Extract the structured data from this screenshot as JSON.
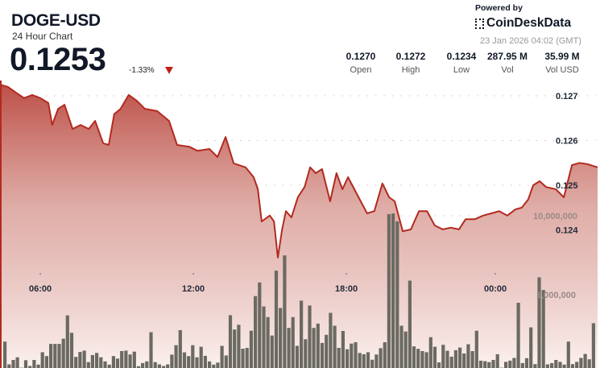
{
  "header": {
    "symbol": "DOGE-USD",
    "subtitle": "24 Hour Chart",
    "price": "0.1253",
    "change": "-1.33%",
    "change_direction": "down",
    "powered_by": "Powered by",
    "brand": "CoinDeskData",
    "timestamp": "23 Jan 2026 04:02 (GMT)",
    "stats": [
      {
        "value": "0.1270",
        "label": "Open"
      },
      {
        "value": "0.1272",
        "label": "High"
      },
      {
        "value": "0.1234",
        "label": "Low"
      },
      {
        "value": "287.95 M",
        "label": "Vol"
      },
      {
        "value": "35.99 M",
        "label": "Vol USD"
      }
    ]
  },
  "colors": {
    "line": "#b22a20",
    "fill_top": "#b8433a",
    "volume_bar": "#6b6a62",
    "down": "#c0201a"
  },
  "chart_data": [
    {
      "type": "area",
      "ylabel_ticks": [
        "0.127",
        "0.126",
        "0.125",
        "0.124"
      ],
      "yticks": [
        0.127,
        0.126,
        0.125,
        0.124
      ],
      "xticks": [
        "06:00",
        "12:00",
        "18:00",
        "00:00"
      ],
      "grid": "dotted-horizontal",
      "series": [
        {
          "points": [
            [
              "04:25",
              0.12725
            ],
            [
              "04:44",
              0.1272
            ],
            [
              "05:03",
              0.12707
            ],
            [
              "05:22",
              0.12695
            ],
            [
              "05:41",
              0.12702
            ],
            [
              "06:00",
              0.12695
            ],
            [
              "06:19",
              0.12684
            ],
            [
              "06:28",
              0.12635
            ],
            [
              "06:42",
              0.12671
            ],
            [
              "06:57",
              0.1268
            ],
            [
              "07:16",
              0.12626
            ],
            [
              "07:35",
              0.12635
            ],
            [
              "07:54",
              0.12626
            ],
            [
              "08:09",
              0.12644
            ],
            [
              "08:28",
              0.12594
            ],
            [
              "08:41",
              0.1259
            ],
            [
              "08:54",
              0.12659
            ],
            [
              "09:09",
              0.12671
            ],
            [
              "09:28",
              0.12702
            ],
            [
              "09:47",
              0.12689
            ],
            [
              "10:06",
              0.12671
            ],
            [
              "10:35",
              0.12666
            ],
            [
              "11:03",
              0.12644
            ],
            [
              "11:22",
              0.1259
            ],
            [
              "11:51",
              0.12586
            ],
            [
              "12:10",
              0.12577
            ],
            [
              "12:38",
              0.12581
            ],
            [
              "12:57",
              0.12563
            ],
            [
              "13:16",
              0.12608
            ],
            [
              "13:35",
              0.12549
            ],
            [
              "14:03",
              0.1254
            ],
            [
              "14:22",
              0.12518
            ],
            [
              "14:32",
              0.12491
            ],
            [
              "14:41",
              0.12419
            ],
            [
              "15:00",
              0.12432
            ],
            [
              "15:10",
              0.12419
            ],
            [
              "15:19",
              0.12338
            ],
            [
              "15:29",
              0.12401
            ],
            [
              "15:38",
              0.12442
            ],
            [
              "15:51",
              0.12428
            ],
            [
              "16:06",
              0.12473
            ],
            [
              "16:22",
              0.12496
            ],
            [
              "16:35",
              0.1254
            ],
            [
              "16:48",
              0.12527
            ],
            [
              "17:03",
              0.12536
            ],
            [
              "17:22",
              0.12464
            ],
            [
              "17:37",
              0.12527
            ],
            [
              "17:51",
              0.12491
            ],
            [
              "18:04",
              0.12518
            ],
            [
              "18:19",
              0.12491
            ],
            [
              "18:34",
              0.12464
            ],
            [
              "18:49",
              0.12437
            ],
            [
              "19:06",
              0.12442
            ],
            [
              "19:25",
              0.12504
            ],
            [
              "19:41",
              0.12473
            ],
            [
              "19:54",
              0.12464
            ],
            [
              "20:13",
              0.12397
            ],
            [
              "20:32",
              0.12401
            ],
            [
              "20:51",
              0.12442
            ],
            [
              "21:10",
              0.12442
            ],
            [
              "21:28",
              0.1241
            ],
            [
              "21:47",
              0.12401
            ],
            [
              "22:06",
              0.12405
            ],
            [
              "22:25",
              0.12401
            ],
            [
              "22:41",
              0.12424
            ],
            [
              "23:03",
              0.12424
            ],
            [
              "23:22",
              0.12432
            ],
            [
              "23:41",
              0.12437
            ],
            [
              "00:00",
              0.12442
            ],
            [
              "00:19",
              0.12432
            ],
            [
              "00:38",
              0.12446
            ],
            [
              "00:53",
              0.1245
            ],
            [
              "01:08",
              0.12468
            ],
            [
              "01:20",
              0.125
            ],
            [
              "01:35",
              0.12509
            ],
            [
              "01:50",
              0.12496
            ],
            [
              "02:13",
              0.12491
            ],
            [
              "02:32",
              0.12473
            ],
            [
              "02:51",
              0.12545
            ],
            [
              "03:09",
              0.1255
            ],
            [
              "03:28",
              0.12547
            ],
            [
              "03:47",
              0.1254
            ]
          ]
        }
      ]
    },
    {
      "type": "bar",
      "scale": "log",
      "ytick_labels": [
        "10,000,000",
        "1,000,000"
      ],
      "yticks": [
        10000000,
        1000000
      ],
      "values": [
        255000,
        131000,
        149000,
        161000,
        119000,
        148000,
        125000,
        149000,
        130000,
        187000,
        167000,
        238000,
        238000,
        238000,
        277000,
        547000,
        329000,
        163000,
        188000,
        196000,
        140000,
        172000,
        183000,
        161000,
        143000,
        130000,
        167000,
        155000,
        193000,
        196000,
        175000,
        190000,
        124000,
        136000,
        143000,
        335000,
        140000,
        131000,
        125000,
        131000,
        174000,
        229000,
        356000,
        186000,
        167000,
        229000,
        161000,
        219000,
        168000,
        143000,
        130000,
        138000,
        225000,
        170000,
        551000,
        362000,
        416000,
        207000,
        212000,
        350000,
        960000,
        1430000,
        710000,
        520000,
        304000,
        2020000,
        680000,
        3150000,
        380000,
        520000,
        225000,
        840000,
        273000,
        730000,
        380000,
        430000,
        245000,
        310000,
        590000,
        405000,
        212000,
        347000,
        204000,
        240000,
        250000,
        183000,
        176000,
        187000,
        150000,
        175000,
        210000,
        250000,
        10500000,
        10700000,
        8500000,
        405000,
        342000,
        1510000,
        222000,
        206000,
        193000,
        187000,
        290000,
        219000,
        139000,
        232000,
        195000,
        164000,
        198000,
        214000,
        180000,
        236000,
        193000,
        350000,
        146000,
        144000,
        140000,
        149000,
        176000,
        119000,
        141000,
        146000,
        158000,
        790000,
        136000,
        157000,
        385000,
        132000,
        1660000,
        1150000,
        131000,
        136000,
        149000,
        141000,
        130000,
        255000,
        132000,
        141000,
        158000,
        178000,
        152000,
        435000
      ]
    }
  ]
}
